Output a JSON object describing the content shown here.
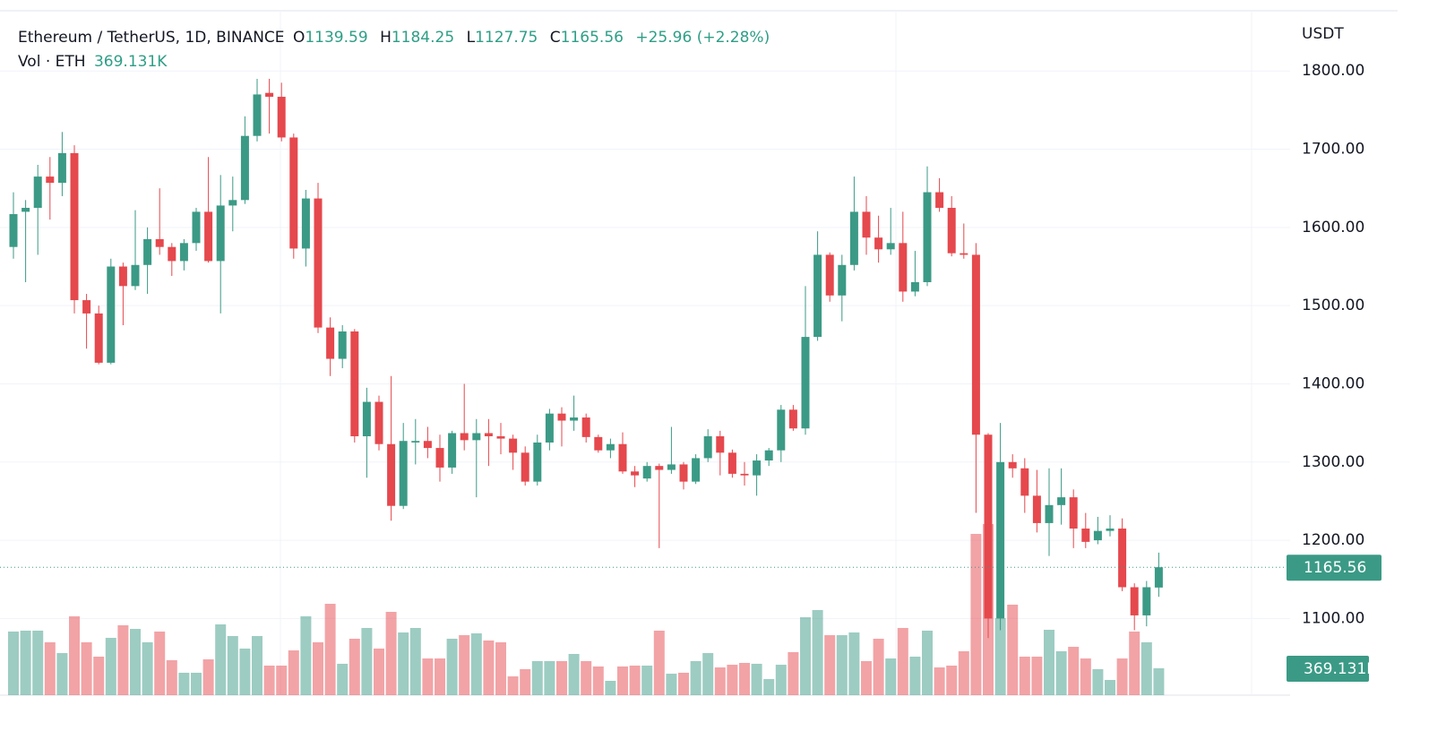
{
  "chart_data": {
    "type": "candlestick",
    "title": "Ethereum / TetherUS, 1D, BINANCE",
    "ohlc_letters": [
      "O",
      "H",
      "L",
      "C"
    ],
    "change_label": "+25.96 (+2.28%)",
    "y_axis_label": "USDT",
    "up_color": "#3b9a85",
    "down_color": "#e5484d",
    "ylim": [
      1002,
      1877
    ],
    "yticks": [
      {
        "value": 1100,
        "label": "1100.00"
      },
      {
        "value": 1200,
        "label": "1200.00"
      },
      {
        "value": 1300,
        "label": "1300.00"
      },
      {
        "value": 1400,
        "label": "1400.00"
      },
      {
        "value": 1500,
        "label": "1500.00"
      },
      {
        "value": 1600,
        "label": "1600.00"
      },
      {
        "value": 1700,
        "label": "1700.00"
      },
      {
        "value": 1800,
        "label": "1800.00"
      }
    ],
    "grid": true,
    "open": [
      1575,
      1620,
      1625,
      1665,
      1657,
      1695,
      1507,
      1490,
      1427,
      1550,
      1525,
      1552,
      1585,
      1575,
      1557,
      1580,
      1620,
      1557,
      1628,
      1635,
      1717,
      1772,
      1767,
      1715,
      1573,
      1637,
      1472,
      1432,
      1467,
      1333,
      1377,
      1323,
      1244,
      1325,
      1327,
      1318,
      1293,
      1337,
      1328,
      1337,
      1333,
      1330,
      1312,
      1275,
      1325,
      1362,
      1353,
      1357,
      1332,
      1315,
      1323,
      1288,
      1279,
      1295,
      1290,
      1297,
      1275,
      1305,
      1333,
      1312,
      1285,
      1283,
      1302,
      1315,
      1367,
      1343,
      1460,
      1565,
      1513,
      1552,
      1620,
      1587,
      1572,
      1580,
      1518,
      1530,
      1645,
      1625,
      1567,
      1565,
      1335,
      1100,
      1300,
      1292,
      1257,
      1222,
      1245,
      1255,
      1215,
      1200,
      1212,
      1215,
      1140,
      1104,
      1139.59
    ],
    "high": [
      1645,
      1635,
      1680,
      1690,
      1722,
      1705,
      1515,
      1500,
      1560,
      1555,
      1622,
      1600,
      1650,
      1580,
      1585,
      1625,
      1690,
      1667,
      1665,
      1742,
      1790,
      1790,
      1785,
      1720,
      1648,
      1657,
      1485,
      1475,
      1470,
      1395,
      1385,
      1410,
      1350,
      1355,
      1345,
      1335,
      1340,
      1400,
      1355,
      1355,
      1350,
      1335,
      1320,
      1335,
      1368,
      1370,
      1385,
      1362,
      1335,
      1330,
      1338,
      1295,
      1300,
      1298,
      1345,
      1300,
      1310,
      1342,
      1340,
      1316,
      1300,
      1310,
      1318,
      1373,
      1373,
      1525,
      1595,
      1568,
      1565,
      1665,
      1640,
      1615,
      1625,
      1620,
      1570,
      1678,
      1663,
      1640,
      1605,
      1580,
      1337,
      1350,
      1310,
      1305,
      1290,
      1292,
      1292,
      1265,
      1235,
      1230,
      1232,
      1228,
      1145,
      1148,
      1184.25
    ],
    "low": [
      1560,
      1530,
      1565,
      1610,
      1640,
      1490,
      1445,
      1425,
      1425,
      1475,
      1520,
      1515,
      1565,
      1538,
      1545,
      1570,
      1555,
      1490,
      1595,
      1630,
      1710,
      1720,
      1710,
      1560,
      1550,
      1465,
      1410,
      1420,
      1325,
      1280,
      1315,
      1225,
      1240,
      1297,
      1305,
      1275,
      1285,
      1315,
      1255,
      1295,
      1310,
      1290,
      1270,
      1270,
      1315,
      1320,
      1340,
      1325,
      1312,
      1305,
      1285,
      1268,
      1275,
      1190,
      1285,
      1265,
      1272,
      1300,
      1283,
      1280,
      1270,
      1257,
      1295,
      1300,
      1340,
      1335,
      1455,
      1505,
      1480,
      1545,
      1565,
      1555,
      1565,
      1505,
      1512,
      1525,
      1620,
      1563,
      1560,
      1235,
      1075,
      1085,
      1280,
      1235,
      1210,
      1180,
      1220,
      1190,
      1190,
      1195,
      1205,
      1135,
      1085,
      1090,
      1127.75
    ],
    "close": [
      1617,
      1625,
      1665,
      1657,
      1695,
      1507,
      1490,
      1427,
      1550,
      1525,
      1552,
      1585,
      1575,
      1557,
      1580,
      1620,
      1557,
      1628,
      1635,
      1717,
      1770,
      1767,
      1715,
      1573,
      1637,
      1472,
      1432,
      1467,
      1333,
      1377,
      1323,
      1244,
      1327,
      1327,
      1318,
      1293,
      1337,
      1328,
      1337,
      1333,
      1330,
      1312,
      1275,
      1325,
      1362,
      1353,
      1357,
      1332,
      1315,
      1323,
      1288,
      1283,
      1295,
      1290,
      1297,
      1275,
      1305,
      1333,
      1312,
      1285,
      1283,
      1302,
      1315,
      1367,
      1343,
      1460,
      1565,
      1513,
      1552,
      1620,
      1587,
      1572,
      1580,
      1518,
      1530,
      1645,
      1625,
      1567,
      1565,
      1335,
      1100,
      1300,
      1292,
      1257,
      1222,
      1245,
      1255,
      1215,
      1198,
      1212,
      1215,
      1140,
      1104,
      1140,
      1165.56
    ],
    "volume": {
      "name": "Vol · ETH",
      "values": [
        874000,
        886000,
        886000,
        726000,
        578000,
        1083000,
        726000,
        529000,
        787000,
        960000,
        910000,
        726000,
        874000,
        480000,
        308000,
        308000,
        492000,
        972000,
        812000,
        640000,
        812000,
        406000,
        406000,
        615000,
        1083000,
        726000,
        1255000,
        431000,
        775000,
        923000,
        640000,
        1144000,
        861000,
        923000,
        504000,
        504000,
        775000,
        824000,
        849000,
        751000,
        726000,
        258000,
        357000,
        468000,
        468000,
        468000,
        566000,
        468000,
        394000,
        197000,
        394000,
        406000,
        406000,
        886000,
        295000,
        308000,
        468000,
        578000,
        381000,
        418000,
        443000,
        431000,
        221000,
        418000,
        591000,
        1070000,
        1169000,
        824000,
        824000,
        861000,
        468000,
        775000,
        504000,
        923000,
        529000,
        886000,
        381000,
        406000,
        603000,
        2215000,
        2350000,
        1058000,
        1243000,
        529000,
        529000,
        898000,
        603000,
        664000,
        504000,
        357000,
        209000,
        504000,
        874000,
        726000,
        369131
      ],
      "last_value_label": "369.131K"
    }
  }
}
